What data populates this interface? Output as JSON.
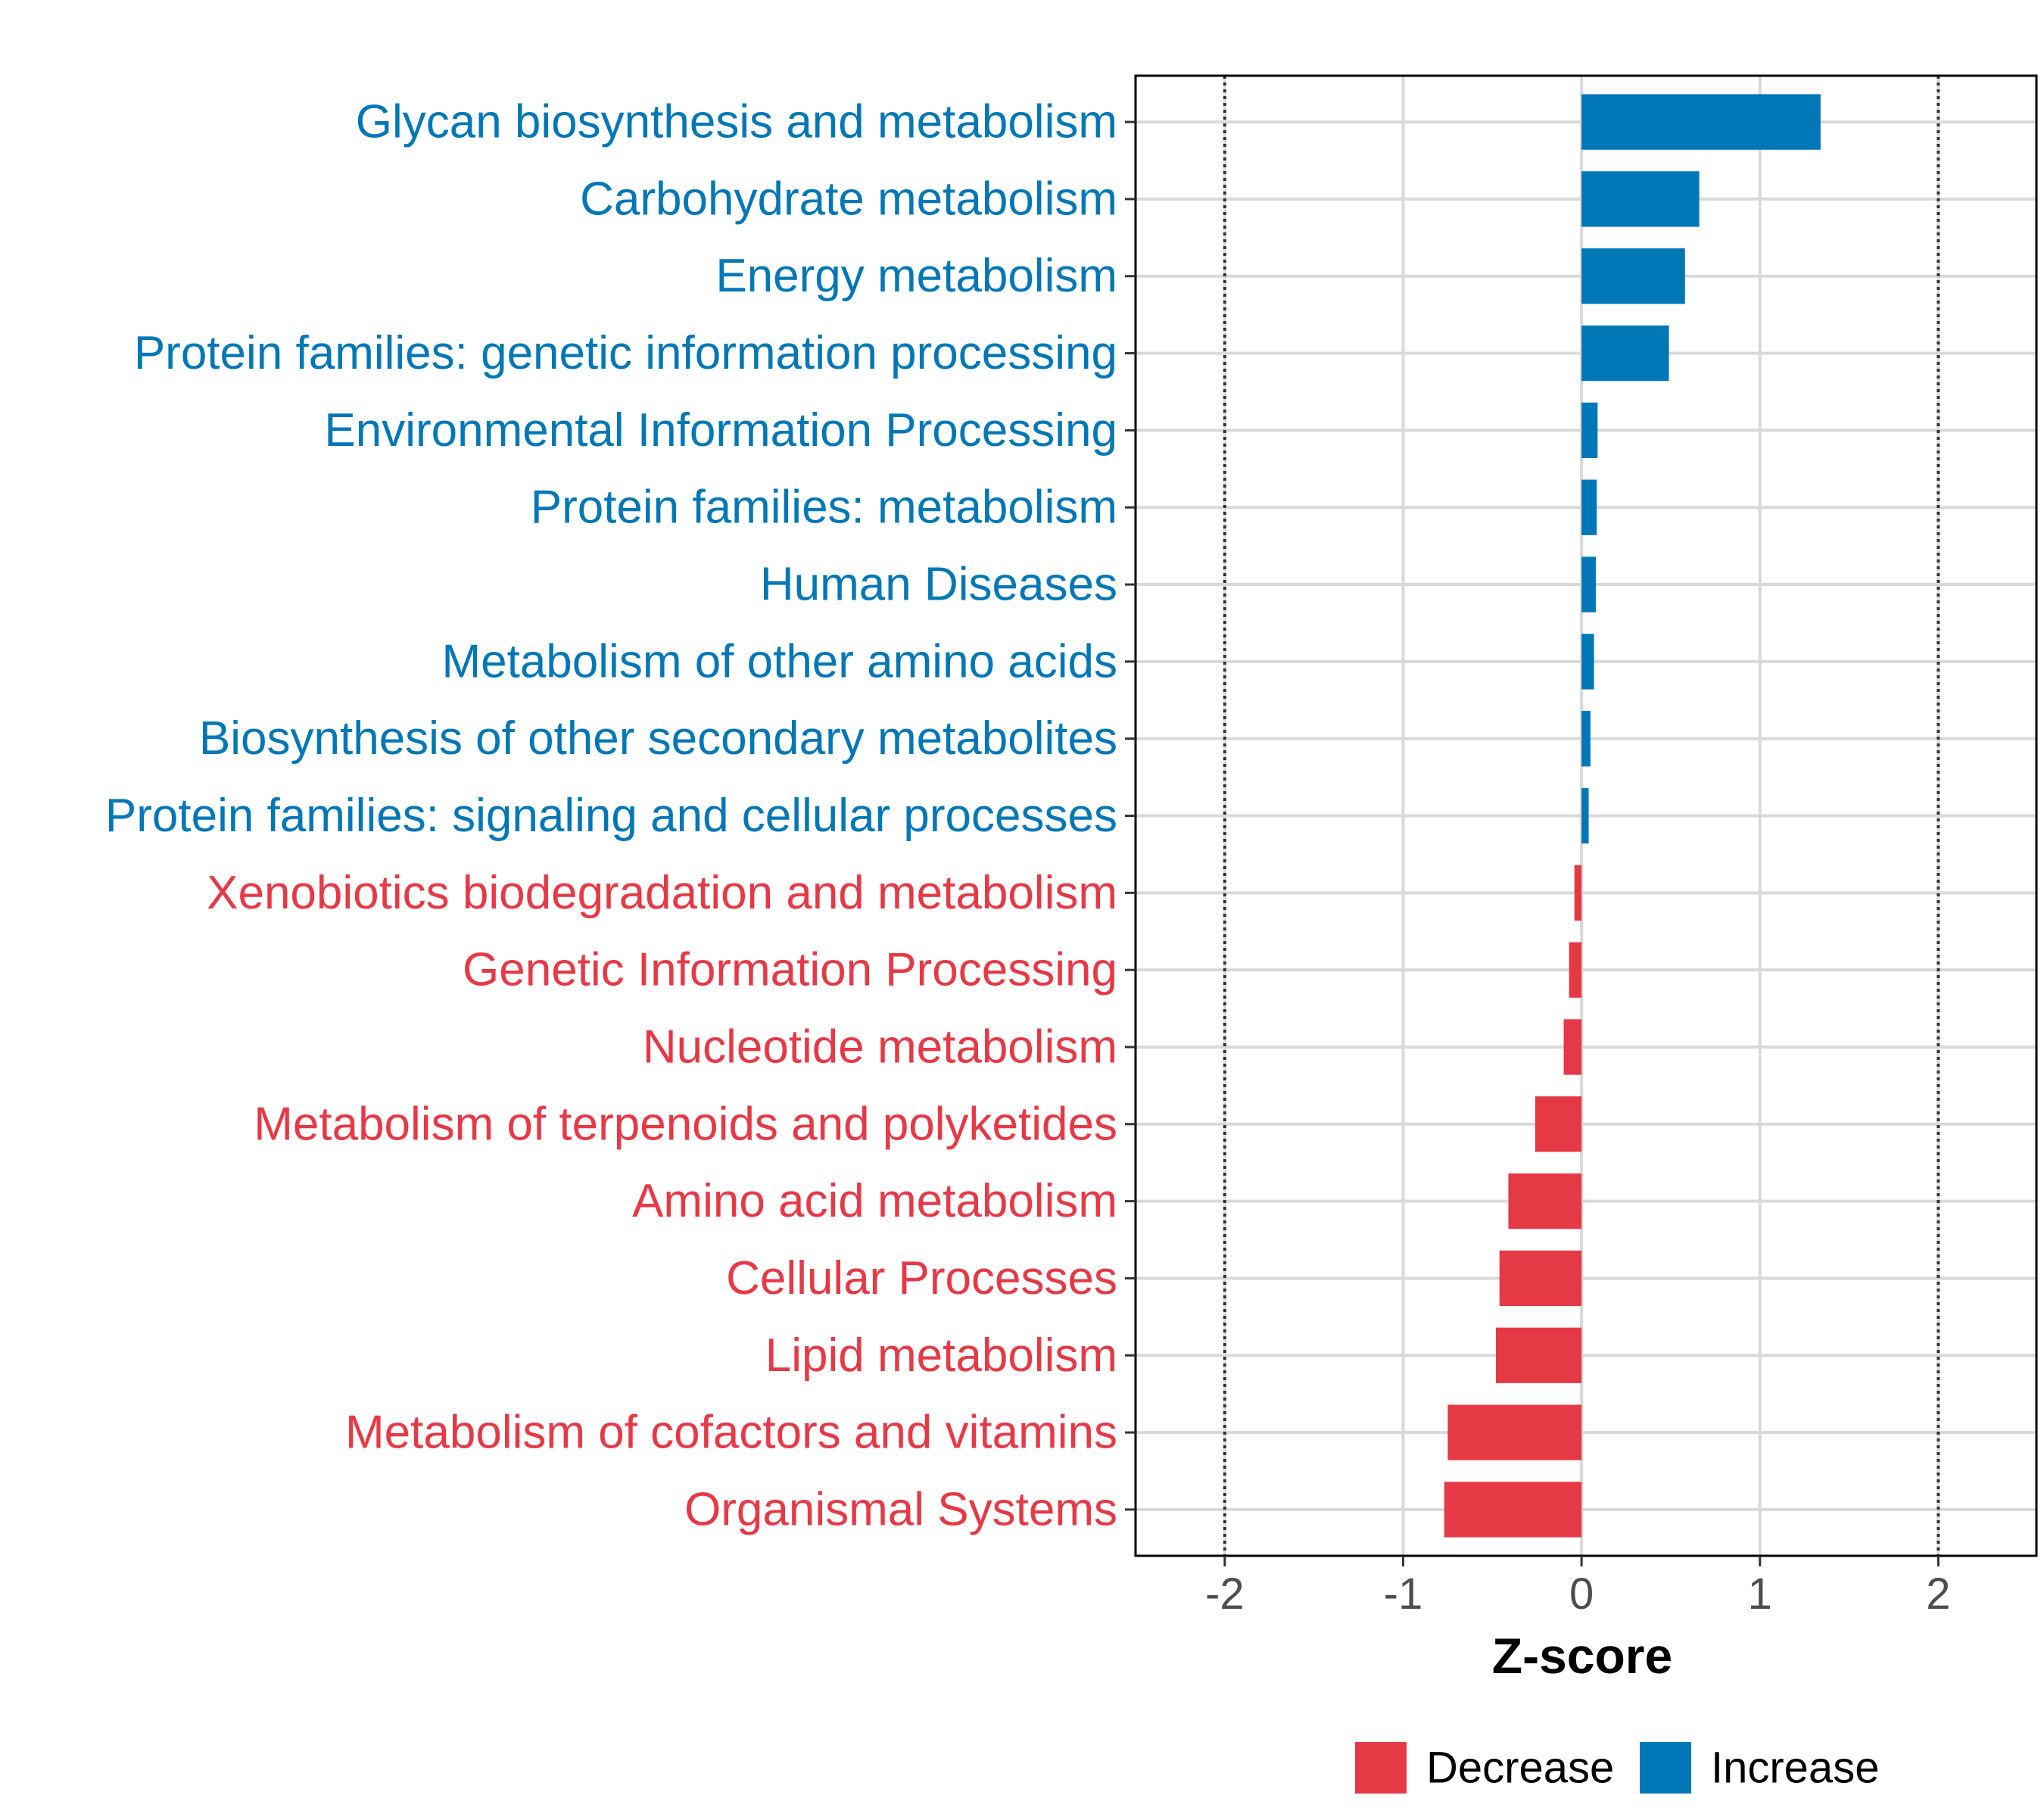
{
  "chart_data": {
    "type": "bar",
    "orientation": "horizontal",
    "xlabel": "Z-score",
    "xlim": [
      -2.5,
      2.55
    ],
    "xticks": [
      -2,
      -1,
      0,
      1,
      2
    ],
    "xtick_labels": [
      "-2",
      "-1",
      "0",
      "1",
      "2"
    ],
    "reference_lines": [
      -2,
      2
    ],
    "grid": true,
    "legend_position": "bottom",
    "categories": [
      "Glycan biosynthesis and metabolism",
      "Carbohydrate metabolism",
      "Energy metabolism",
      "Protein families: genetic information processing",
      "Environmental Information Processing",
      "Protein families: metabolism",
      "Human Diseases",
      "Metabolism of other amino acids",
      "Biosynthesis of other secondary metabolites",
      "Protein families: signaling and cellular processes",
      "Xenobiotics biodegradation and metabolism",
      "Genetic Information Processing",
      "Nucleotide metabolism",
      "Metabolism of terpenoids and polyketides",
      "Amino acid metabolism",
      "Cellular Processes",
      "Lipid metabolism",
      "Metabolism of cofactors and vitamins",
      "Organismal Systems"
    ],
    "values": [
      1.34,
      0.66,
      0.58,
      0.49,
      0.09,
      0.085,
      0.08,
      0.07,
      0.05,
      0.04,
      -0.04,
      -0.07,
      -0.1,
      -0.26,
      -0.41,
      -0.46,
      -0.48,
      -0.75,
      -0.77
    ],
    "groups": [
      "Increase",
      "Increase",
      "Increase",
      "Increase",
      "Increase",
      "Increase",
      "Increase",
      "Increase",
      "Increase",
      "Increase",
      "Decrease",
      "Decrease",
      "Decrease",
      "Decrease",
      "Decrease",
      "Decrease",
      "Decrease",
      "Decrease",
      "Decrease"
    ],
    "legend": [
      {
        "name": "Decrease",
        "color": "#e63946"
      },
      {
        "name": "Increase",
        "color": "#0077b6"
      }
    ],
    "colors": {
      "Decrease": "#e63946",
      "Increase": "#0077b6"
    }
  }
}
